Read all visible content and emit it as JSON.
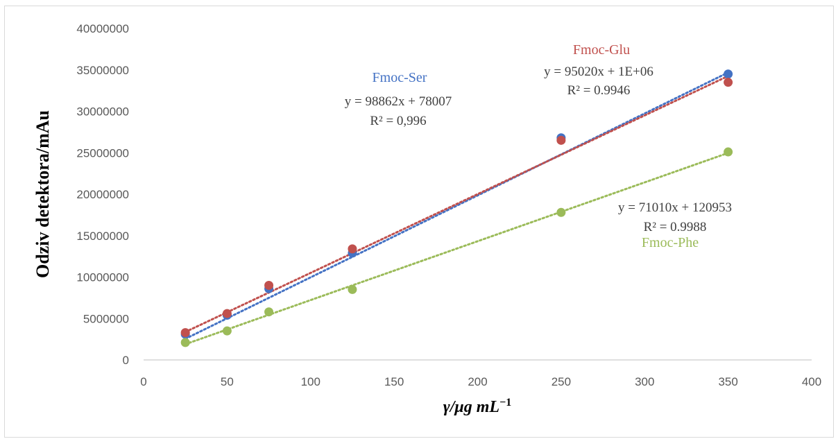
{
  "chart_data": {
    "type": "scatter",
    "xlabel": "γ/μg mL",
    "xlabel_sup": "−1",
    "ylabel": "Odziv detektora/mAu",
    "xlim": [
      0,
      400
    ],
    "ylim": [
      0,
      40000000
    ],
    "x_ticks": [
      "0",
      "50",
      "100",
      "150",
      "200",
      "250",
      "300",
      "350",
      "400"
    ],
    "y_ticks": [
      "0",
      "5000000",
      "10000000",
      "15000000",
      "20000000",
      "25000000",
      "30000000",
      "35000000",
      "40000000"
    ],
    "grid": false,
    "legend": "none",
    "series": [
      {
        "name": "Fmoc-Ser",
        "color": "#4472c4",
        "x": [
          25,
          50,
          75,
          125,
          250,
          350
        ],
        "y": [
          3100000,
          5400000,
          8600000,
          12900000,
          26800000,
          34500000
        ],
        "trendline": {
          "slope": 98862,
          "intercept": 78007
        },
        "equation": "y = 98862x + 78007",
        "r2": "R² = 0,996"
      },
      {
        "name": "Fmoc-Glu",
        "color": "#c0504d",
        "x": [
          25,
          50,
          75,
          125,
          250,
          350
        ],
        "y": [
          3300000,
          5600000,
          9000000,
          13400000,
          26500000,
          33500000
        ],
        "trendline": {
          "slope": 95020,
          "intercept": 1000000
        },
        "equation": "y = 95020x + 1E+06",
        "r2": "R² = 0.9946"
      },
      {
        "name": "Fmoc-Phe",
        "color": "#9bbb59",
        "x": [
          25,
          50,
          75,
          125,
          250,
          350
        ],
        "y": [
          2100000,
          3500000,
          5800000,
          8500000,
          17800000,
          25100000
        ],
        "trendline": {
          "slope": 71010,
          "intercept": 120953
        },
        "equation": "y = 71010x + 120953",
        "r2": "R² = 0.9988"
      }
    ]
  }
}
